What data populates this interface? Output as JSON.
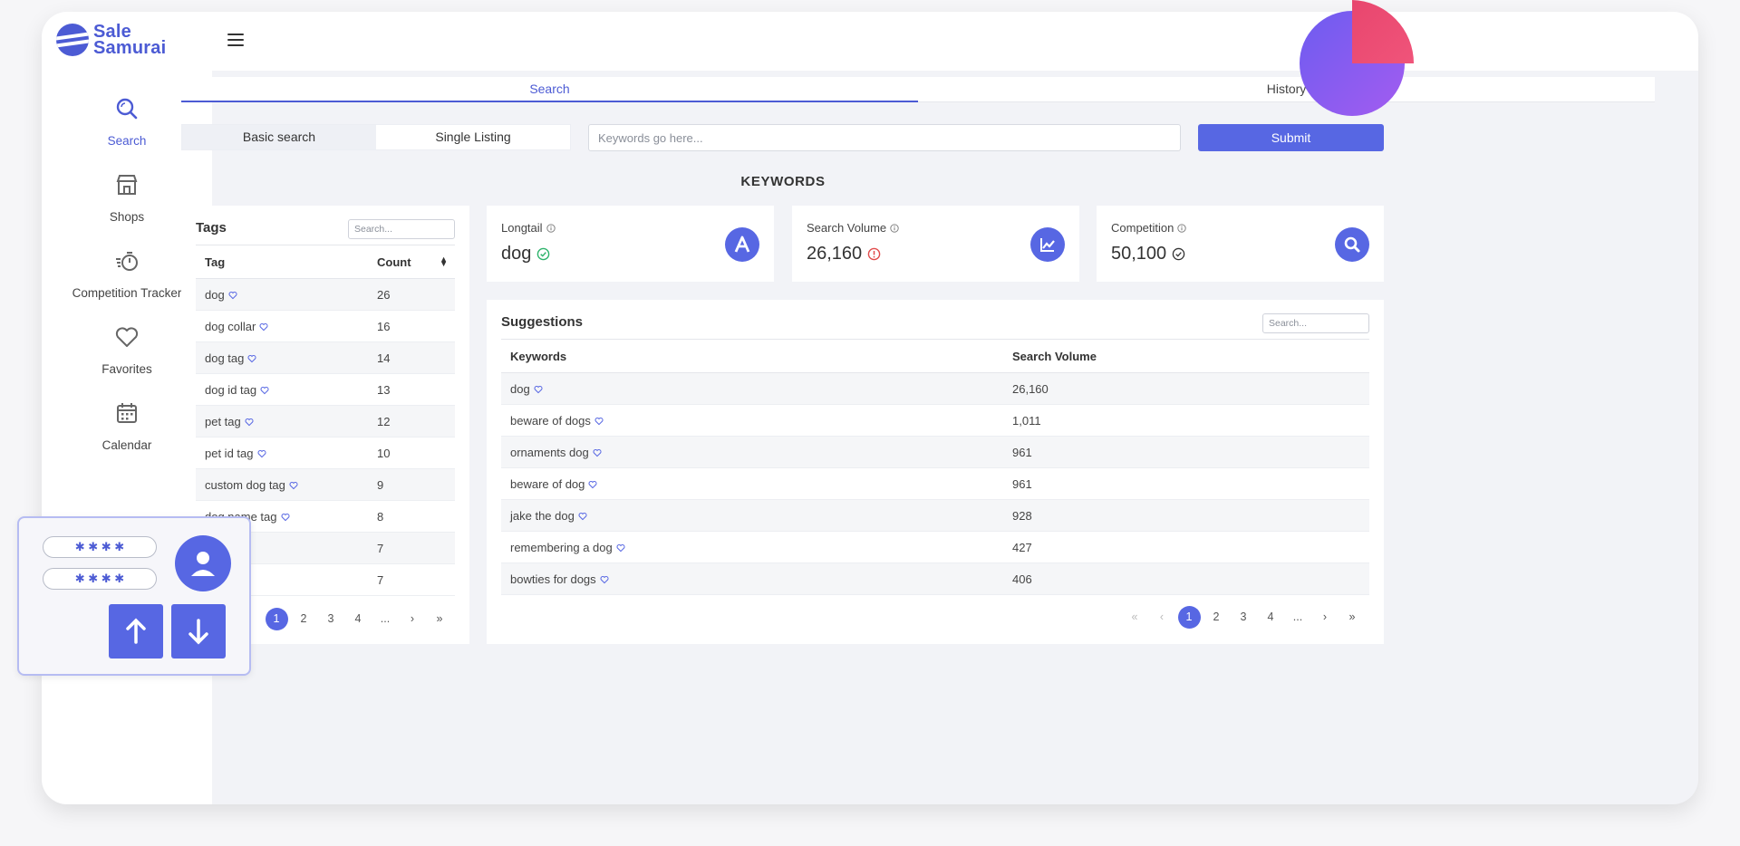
{
  "brand": {
    "line1": "Sale",
    "line2": "Samurai",
    "color": "#4c5bd4"
  },
  "sidebar": {
    "items": [
      {
        "label": "Search",
        "icon": "search-icon",
        "active": true
      },
      {
        "label": "Shops",
        "icon": "shop-icon"
      },
      {
        "label": "Competition Tracker",
        "icon": "stopwatch-icon"
      },
      {
        "label": "Favorites",
        "icon": "heart-icon"
      },
      {
        "label": "Calendar",
        "icon": "calendar-icon"
      }
    ]
  },
  "tabs": [
    {
      "label": "Search",
      "active": true
    },
    {
      "label": "History"
    }
  ],
  "search_mode": [
    {
      "label": "Basic search",
      "active": true
    },
    {
      "label": "Single Listing"
    }
  ],
  "keyword_input": {
    "placeholder": "Keywords go here...",
    "value": ""
  },
  "submit_label": "Submit",
  "section_title": "KEYWORDS",
  "tags": {
    "title": "Tags",
    "search_placeholder": "Search...",
    "columns": [
      "Tag",
      "Count"
    ],
    "rows": [
      {
        "tag": "dog",
        "count": "26"
      },
      {
        "tag": "dog collar",
        "count": "16"
      },
      {
        "tag": "dog tag",
        "count": "14"
      },
      {
        "tag": "dog id tag",
        "count": "13"
      },
      {
        "tag": "pet tag",
        "count": "12"
      },
      {
        "tag": "pet id tag",
        "count": "10"
      },
      {
        "tag": "custom dog tag",
        "count": "9"
      },
      {
        "tag": "dog name tag",
        "count": "8"
      },
      {
        "tag": "",
        "count": "7"
      },
      {
        "tag": "",
        "count": "7"
      }
    ],
    "pager": [
      "1",
      "2",
      "3",
      "4",
      "...",
      "›",
      "»"
    ]
  },
  "stats": [
    {
      "label": "Longtail",
      "value": "dog",
      "status": "ok",
      "icon": "letter-a-icon"
    },
    {
      "label": "Search Volume",
      "value": "26,160",
      "status": "warning",
      "icon": "trend-chart-icon"
    },
    {
      "label": "Competition",
      "value": "50,100",
      "status": "ok",
      "icon": "search-icon"
    }
  ],
  "suggestions": {
    "title": "Suggestions",
    "search_placeholder": "Search...",
    "columns": [
      "Keywords",
      "Search Volume"
    ],
    "rows": [
      {
        "keyword": "dog",
        "volume": "26,160"
      },
      {
        "keyword": "beware of dogs",
        "volume": "1,011"
      },
      {
        "keyword": "ornaments dog",
        "volume": "961"
      },
      {
        "keyword": "beware of dog",
        "volume": "961"
      },
      {
        "keyword": "jake the dog",
        "volume": "928"
      },
      {
        "keyword": "remembering a dog",
        "volume": "427"
      },
      {
        "keyword": "bowties for dogs",
        "volume": "406"
      }
    ],
    "pager": [
      "«",
      "‹",
      "1",
      "2",
      "3",
      "4",
      "...",
      "›",
      "»"
    ]
  },
  "login_overlay": {
    "password_mask_1": "✱  ✱  ✱  ✱",
    "password_mask_2": "✱  ✱  ✱  ✱"
  },
  "colors": {
    "accent": "#5767e3",
    "success": "#2db36b",
    "warning": "#e14b4b",
    "heart": "#5767e3"
  }
}
